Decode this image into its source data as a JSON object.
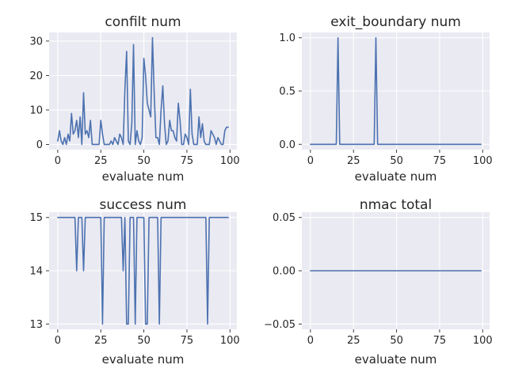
{
  "chart_data": [
    {
      "type": "line",
      "title": "confilt num",
      "xlabel": "evaluate num",
      "ylabel": "",
      "xlim": [
        -5,
        104
      ],
      "ylim": [
        -1.5,
        32.5
      ],
      "xticks": [
        0,
        25,
        50,
        75,
        100
      ],
      "xtick_labels": [
        "0",
        "25",
        "50",
        "75",
        "100"
      ],
      "yticks": [
        0,
        10,
        20,
        30
      ],
      "ytick_labels": [
        "0",
        "10",
        "20",
        "30"
      ],
      "grid": true,
      "x": [
        0,
        1,
        2,
        3,
        4,
        5,
        6,
        7,
        8,
        9,
        10,
        11,
        12,
        13,
        14,
        15,
        16,
        17,
        18,
        19,
        20,
        21,
        22,
        23,
        24,
        25,
        26,
        27,
        28,
        29,
        30,
        31,
        32,
        33,
        34,
        35,
        36,
        37,
        38,
        39,
        40,
        41,
        42,
        43,
        44,
        45,
        46,
        47,
        48,
        49,
        50,
        51,
        52,
        53,
        54,
        55,
        56,
        57,
        58,
        59,
        60,
        61,
        62,
        63,
        64,
        65,
        66,
        67,
        68,
        69,
        70,
        71,
        72,
        73,
        74,
        75,
        76,
        77,
        78,
        79,
        80,
        81,
        82,
        83,
        84,
        85,
        86,
        87,
        88,
        89,
        90,
        91,
        92,
        93,
        94,
        95,
        96,
        97,
        98,
        99
      ],
      "series": [
        {
          "values": [
            1,
            4,
            1,
            0,
            2,
            0,
            3,
            1,
            9,
            3,
            4,
            7,
            2,
            8,
            0,
            15,
            3,
            4,
            2,
            7,
            0,
            0,
            0,
            0,
            0,
            7,
            3,
            0,
            0,
            0,
            0,
            1,
            0,
            2,
            1,
            0,
            3,
            2,
            0,
            16,
            27,
            1,
            0,
            6,
            29,
            0,
            4,
            1,
            0,
            2,
            25,
            20,
            12,
            10,
            8,
            31,
            15,
            2,
            2,
            0,
            10,
            17,
            6,
            0,
            1,
            7,
            4,
            4,
            2,
            1,
            12,
            7,
            0,
            0,
            3,
            2,
            0,
            16,
            3,
            0,
            0,
            0,
            8,
            2,
            6,
            1,
            0,
            0,
            0,
            4,
            3,
            2,
            0,
            2,
            1,
            0,
            0,
            4,
            5,
            5
          ]
        }
      ]
    },
    {
      "type": "line",
      "title": "exit_boundary num",
      "xlabel": "evaluate num",
      "ylabel": "",
      "xlim": [
        -5,
        104
      ],
      "ylim": [
        -0.05,
        1.05
      ],
      "xticks": [
        0,
        25,
        50,
        75,
        100
      ],
      "xtick_labels": [
        "0",
        "25",
        "50",
        "75",
        "100"
      ],
      "yticks": [
        0,
        0.5,
        1.0
      ],
      "ytick_labels": [
        "0.0",
        "0.5",
        "1.0"
      ],
      "grid": true,
      "x": [
        0,
        1,
        2,
        3,
        4,
        5,
        6,
        7,
        8,
        9,
        10,
        11,
        12,
        13,
        14,
        15,
        16,
        17,
        18,
        19,
        20,
        21,
        22,
        23,
        24,
        25,
        26,
        27,
        28,
        29,
        30,
        31,
        32,
        33,
        34,
        35,
        36,
        37,
        38,
        39,
        40,
        41,
        42,
        43,
        44,
        45,
        46,
        47,
        48,
        49,
        50,
        51,
        52,
        53,
        54,
        55,
        56,
        57,
        58,
        59,
        60,
        61,
        62,
        63,
        64,
        65,
        66,
        67,
        68,
        69,
        70,
        71,
        72,
        73,
        74,
        75,
        76,
        77,
        78,
        79,
        80,
        81,
        82,
        83,
        84,
        85,
        86,
        87,
        88,
        89,
        90,
        91,
        92,
        93,
        94,
        95,
        96,
        97,
        98,
        99
      ],
      "series": [
        {
          "values": [
            0,
            0,
            0,
            0,
            0,
            0,
            0,
            0,
            0,
            0,
            0,
            0,
            0,
            0,
            0,
            0,
            1,
            0,
            0,
            0,
            0,
            0,
            0,
            0,
            0,
            0,
            0,
            0,
            0,
            0,
            0,
            0,
            0,
            0,
            0,
            0,
            0,
            0,
            1,
            0,
            0,
            0,
            0,
            0,
            0,
            0,
            0,
            0,
            0,
            0,
            0,
            0,
            0,
            0,
            0,
            0,
            0,
            0,
            0,
            0,
            0,
            0,
            0,
            0,
            0,
            0,
            0,
            0,
            0,
            0,
            0,
            0,
            0,
            0,
            0,
            0,
            0,
            0,
            0,
            0,
            0,
            0,
            0,
            0,
            0,
            0,
            0,
            0,
            0,
            0,
            0,
            0,
            0,
            0,
            0,
            0,
            0,
            0,
            0,
            0
          ]
        }
      ]
    },
    {
      "type": "line",
      "title": "success num",
      "xlabel": "evaluate num",
      "ylabel": "",
      "xlim": [
        -5,
        104
      ],
      "ylim": [
        12.9,
        15.1
      ],
      "xticks": [
        0,
        25,
        50,
        75,
        100
      ],
      "xtick_labels": [
        "0",
        "25",
        "50",
        "75",
        "100"
      ],
      "yticks": [
        13,
        14,
        15
      ],
      "ytick_labels": [
        "13",
        "14",
        "15"
      ],
      "grid": true,
      "x": [
        0,
        1,
        2,
        3,
        4,
        5,
        6,
        7,
        8,
        9,
        10,
        11,
        12,
        13,
        14,
        15,
        16,
        17,
        18,
        19,
        20,
        21,
        22,
        23,
        24,
        25,
        26,
        27,
        28,
        29,
        30,
        31,
        32,
        33,
        34,
        35,
        36,
        37,
        38,
        39,
        40,
        41,
        42,
        43,
        44,
        45,
        46,
        47,
        48,
        49,
        50,
        51,
        52,
        53,
        54,
        55,
        56,
        57,
        58,
        59,
        60,
        61,
        62,
        63,
        64,
        65,
        66,
        67,
        68,
        69,
        70,
        71,
        72,
        73,
        74,
        75,
        76,
        77,
        78,
        79,
        80,
        81,
        82,
        83,
        84,
        85,
        86,
        87,
        88,
        89,
        90,
        91,
        92,
        93,
        94,
        95,
        96,
        97,
        98,
        99
      ],
      "series": [
        {
          "values": [
            15,
            15,
            15,
            15,
            15,
            15,
            15,
            15,
            15,
            15,
            15,
            14,
            15,
            15,
            15,
            14,
            15,
            15,
            15,
            15,
            15,
            15,
            15,
            15,
            15,
            15,
            13,
            15,
            15,
            15,
            15,
            15,
            15,
            15,
            15,
            15,
            15,
            15,
            14,
            15,
            13,
            13,
            15,
            15,
            15,
            13,
            15,
            15,
            15,
            15,
            15,
            13,
            13,
            15,
            15,
            15,
            15,
            15,
            15,
            13,
            15,
            15,
            15,
            15,
            15,
            15,
            15,
            15,
            15,
            15,
            15,
            15,
            15,
            15,
            15,
            15,
            15,
            15,
            15,
            15,
            15,
            15,
            15,
            15,
            15,
            15,
            15,
            13,
            15,
            15,
            15,
            15,
            15,
            15,
            15,
            15,
            15,
            15,
            15,
            15
          ]
        }
      ]
    },
    {
      "type": "line",
      "title": "nmac total",
      "xlabel": "evaluate num",
      "ylabel": "",
      "xlim": [
        -5,
        104
      ],
      "ylim": [
        -0.055,
        0.055
      ],
      "xticks": [
        0,
        25,
        50,
        75,
        100
      ],
      "xtick_labels": [
        "0",
        "25",
        "50",
        "75",
        "100"
      ],
      "yticks": [
        -0.05,
        0,
        0.05
      ],
      "ytick_labels": [
        "−0.05",
        "0.00",
        "0.05"
      ],
      "grid": true,
      "x": [
        0,
        1,
        2,
        3,
        4,
        5,
        6,
        7,
        8,
        9,
        10,
        11,
        12,
        13,
        14,
        15,
        16,
        17,
        18,
        19,
        20,
        21,
        22,
        23,
        24,
        25,
        26,
        27,
        28,
        29,
        30,
        31,
        32,
        33,
        34,
        35,
        36,
        37,
        38,
        39,
        40,
        41,
        42,
        43,
        44,
        45,
        46,
        47,
        48,
        49,
        50,
        51,
        52,
        53,
        54,
        55,
        56,
        57,
        58,
        59,
        60,
        61,
        62,
        63,
        64,
        65,
        66,
        67,
        68,
        69,
        70,
        71,
        72,
        73,
        74,
        75,
        76,
        77,
        78,
        79,
        80,
        81,
        82,
        83,
        84,
        85,
        86,
        87,
        88,
        89,
        90,
        91,
        92,
        93,
        94,
        95,
        96,
        97,
        98,
        99
      ],
      "series": [
        {
          "values": [
            0,
            0,
            0,
            0,
            0,
            0,
            0,
            0,
            0,
            0,
            0,
            0,
            0,
            0,
            0,
            0,
            0,
            0,
            0,
            0,
            0,
            0,
            0,
            0,
            0,
            0,
            0,
            0,
            0,
            0,
            0,
            0,
            0,
            0,
            0,
            0,
            0,
            0,
            0,
            0,
            0,
            0,
            0,
            0,
            0,
            0,
            0,
            0,
            0,
            0,
            0,
            0,
            0,
            0,
            0,
            0,
            0,
            0,
            0,
            0,
            0,
            0,
            0,
            0,
            0,
            0,
            0,
            0,
            0,
            0,
            0,
            0,
            0,
            0,
            0,
            0,
            0,
            0,
            0,
            0,
            0,
            0,
            0,
            0,
            0,
            0,
            0,
            0,
            0,
            0,
            0,
            0,
            0,
            0,
            0,
            0,
            0,
            0,
            0,
            0
          ]
        }
      ]
    }
  ],
  "colors": {
    "series": "#4c72b0",
    "plot_background": "#eaeaf2",
    "grid": "#ffffff"
  }
}
